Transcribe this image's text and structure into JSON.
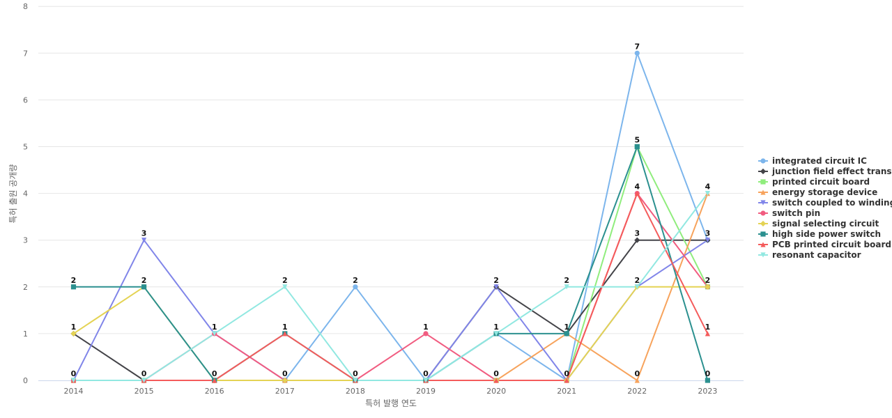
{
  "chart_data": {
    "type": "line",
    "title": "",
    "xlabel": "특허 발행 연도",
    "ylabel": "특허 출원 공개량",
    "ylim": [
      0,
      8
    ],
    "y_ticks": [
      0,
      1,
      2,
      3,
      4,
      5,
      6,
      7,
      8
    ],
    "categories": [
      "2014",
      "2015",
      "2016",
      "2017",
      "2018",
      "2019",
      "2020",
      "2021",
      "2022",
      "2023"
    ],
    "grid": true,
    "legend_position": "right",
    "series": [
      {
        "name": "integrated circuit IC",
        "color": "#7cb5ec",
        "marker": "circle",
        "values": [
          0,
          0,
          0,
          0,
          2,
          0,
          1,
          0,
          7,
          3
        ]
      },
      {
        "name": "junction field effect trans...",
        "color": "#434348",
        "marker": "diamond",
        "values": [
          1,
          0,
          0,
          0,
          0,
          0,
          2,
          1,
          3,
          3
        ]
      },
      {
        "name": "printed circuit board",
        "color": "#90ed7d",
        "marker": "square",
        "values": [
          0,
          0,
          0,
          0,
          0,
          0,
          0,
          0,
          5,
          2
        ]
      },
      {
        "name": "energy storage device",
        "color": "#f7a35c",
        "marker": "triangle",
        "values": [
          0,
          0,
          0,
          0,
          0,
          0,
          0,
          1,
          0,
          4
        ]
      },
      {
        "name": "switch coupled to winding",
        "color": "#8085e9",
        "marker": "triangle-down",
        "values": [
          0,
          3,
          1,
          0,
          0,
          0,
          2,
          0,
          2,
          3
        ]
      },
      {
        "name": "switch pin",
        "color": "#f15c80",
        "marker": "circle",
        "values": [
          0,
          0,
          1,
          0,
          0,
          1,
          0,
          0,
          4,
          2
        ]
      },
      {
        "name": "signal selecting circuit",
        "color": "#e4d354",
        "marker": "diamond",
        "values": [
          1,
          2,
          0,
          0,
          0,
          0,
          0,
          0,
          2,
          2
        ]
      },
      {
        "name": "high side power switch",
        "color": "#2b908f",
        "marker": "square",
        "values": [
          2,
          2,
          0,
          1,
          0,
          0,
          1,
          1,
          5,
          0
        ]
      },
      {
        "name": "PCB printed circuit board",
        "color": "#f45b5b",
        "marker": "triangle",
        "values": [
          0,
          0,
          0,
          1,
          0,
          0,
          0,
          0,
          4,
          1
        ]
      },
      {
        "name": "resonant capacitor",
        "color": "#91e8e1",
        "marker": "triangle-down",
        "values": [
          0,
          0,
          1,
          2,
          0,
          0,
          1,
          2,
          2,
          4
        ]
      }
    ],
    "point_labels": [
      {
        "x": "2014",
        "y": 2,
        "text": "2"
      },
      {
        "x": "2014",
        "y": 1,
        "text": "1"
      },
      {
        "x": "2014",
        "y": 0,
        "text": "0"
      },
      {
        "x": "2015",
        "y": 3,
        "text": "3"
      },
      {
        "x": "2015",
        "y": 2,
        "text": "2"
      },
      {
        "x": "2015",
        "y": 0,
        "text": "0"
      },
      {
        "x": "2016",
        "y": 1,
        "text": "1"
      },
      {
        "x": "2016",
        "y": 0,
        "text": "0"
      },
      {
        "x": "2017",
        "y": 2,
        "text": "2"
      },
      {
        "x": "2017",
        "y": 1,
        "text": "1"
      },
      {
        "x": "2017",
        "y": 0,
        "text": "0"
      },
      {
        "x": "2018",
        "y": 2,
        "text": "2"
      },
      {
        "x": "2018",
        "y": 0,
        "text": "0"
      },
      {
        "x": "2019",
        "y": 1,
        "text": "1"
      },
      {
        "x": "2019",
        "y": 0,
        "text": "0"
      },
      {
        "x": "2020",
        "y": 2,
        "text": "2"
      },
      {
        "x": "2020",
        "y": 1,
        "text": "1"
      },
      {
        "x": "2020",
        "y": 0,
        "text": "0"
      },
      {
        "x": "2021",
        "y": 2,
        "text": "2"
      },
      {
        "x": "2021",
        "y": 1,
        "text": "1"
      },
      {
        "x": "2021",
        "y": 0,
        "text": "0"
      },
      {
        "x": "2022",
        "y": 7,
        "text": "7"
      },
      {
        "x": "2022",
        "y": 5,
        "text": "5"
      },
      {
        "x": "2022",
        "y": 4,
        "text": "4"
      },
      {
        "x": "2022",
        "y": 3,
        "text": "3"
      },
      {
        "x": "2022",
        "y": 2,
        "text": "2"
      },
      {
        "x": "2022",
        "y": 0,
        "text": "0"
      },
      {
        "x": "2023",
        "y": 4,
        "text": "4"
      },
      {
        "x": "2023",
        "y": 3,
        "text": "3"
      },
      {
        "x": "2023",
        "y": 2,
        "text": "2"
      },
      {
        "x": "2023",
        "y": 1,
        "text": "1"
      },
      {
        "x": "2023",
        "y": 0,
        "text": "0"
      }
    ]
  }
}
